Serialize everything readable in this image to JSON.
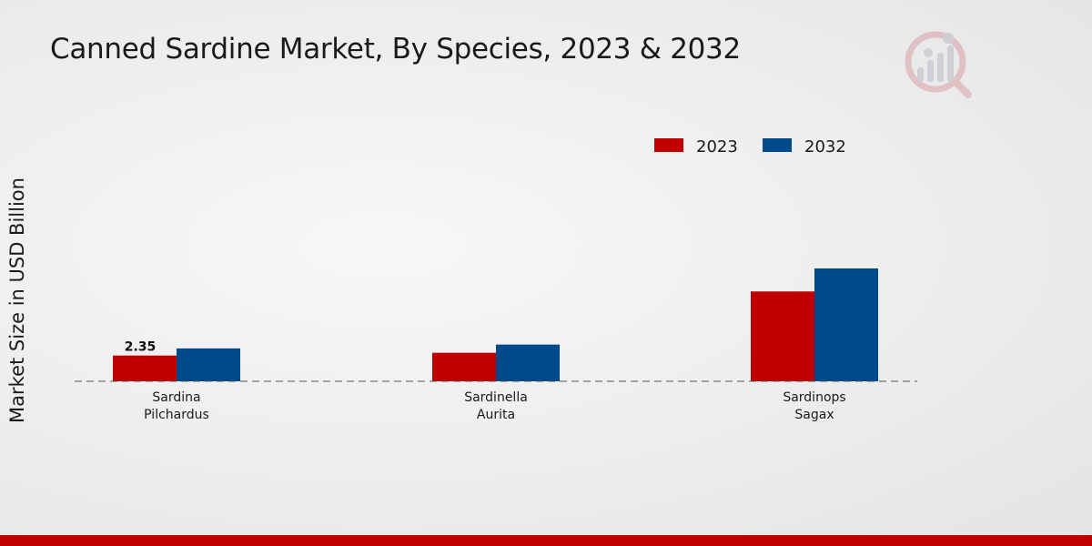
{
  "chart_data": {
    "type": "bar",
    "title": "Canned Sardine Market, By Species, 2023 & 2032",
    "xlabel": "",
    "ylabel": "Market Size in USD Billion",
    "categories": [
      [
        "Sardina",
        "Pilchardus"
      ],
      [
        "Sardinella",
        "Aurita"
      ],
      [
        "Sardinops",
        "Sagax"
      ]
    ],
    "series": [
      {
        "name": "2023",
        "color": "#c00000",
        "values": [
          2.35,
          2.6,
          8.2
        ]
      },
      {
        "name": "2032",
        "color": "#004a8c",
        "values": [
          3.0,
          3.35,
          10.3
        ]
      }
    ],
    "data_labels": [
      {
        "series": 0,
        "index": 0,
        "text": "2.35"
      }
    ],
    "ylim": [
      0,
      25
    ],
    "grid": false,
    "legend_position": "top-right",
    "baseline_style": "dashed"
  },
  "colors": {
    "footer": "#c00000",
    "logo": "#d9a0a6"
  }
}
